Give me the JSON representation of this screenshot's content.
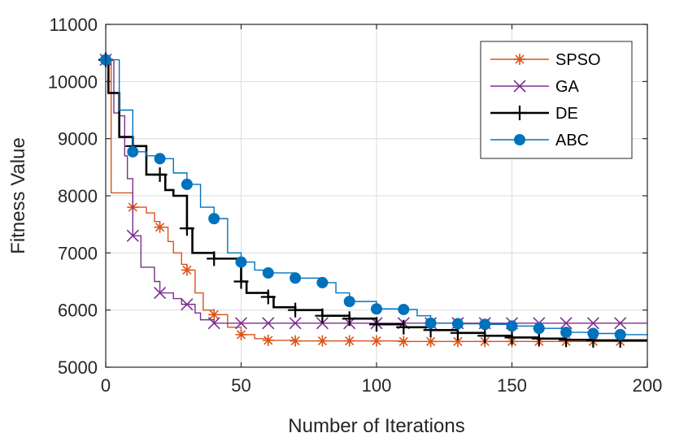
{
  "chart_data": {
    "type": "line",
    "title": "",
    "xlabel": "Number of Iterations",
    "ylabel": "Fitness Value",
    "xlim": [
      0,
      200
    ],
    "ylim": [
      5000,
      11000
    ],
    "xticks": [
      0,
      50,
      100,
      150,
      200
    ],
    "yticks": [
      5000,
      6000,
      7000,
      8000,
      9000,
      10000,
      11000
    ],
    "grid": true,
    "legend_position": "top-right",
    "series": [
      {
        "name": "SPSO",
        "color": "#D95319",
        "marker": "asterisk",
        "x": [
          0,
          1,
          2,
          9,
          10,
          15,
          18,
          20,
          23,
          25,
          28,
          30,
          33,
          36,
          40,
          45,
          50,
          55,
          60,
          70,
          80,
          90,
          100,
          110,
          120,
          130,
          140,
          150,
          160,
          170,
          180,
          190,
          200
        ],
        "y": [
          10380,
          10380,
          8050,
          8050,
          7800,
          7700,
          7550,
          7450,
          7200,
          7000,
          6800,
          6700,
          6300,
          6000,
          5920,
          5700,
          5570,
          5500,
          5470,
          5460,
          5460,
          5460,
          5460,
          5450,
          5450,
          5450,
          5450,
          5450,
          5450,
          5450,
          5450,
          5450,
          5450
        ]
      },
      {
        "name": "GA",
        "color": "#7E2F8E",
        "marker": "x",
        "x": [
          0,
          3,
          5,
          7,
          8,
          10,
          12,
          13,
          15,
          18,
          20,
          25,
          28,
          30,
          33,
          35,
          40,
          45,
          50,
          60,
          70,
          80,
          90,
          100,
          110,
          120,
          130,
          140,
          150,
          160,
          170,
          180,
          190,
          200
        ],
        "y": [
          10380,
          9450,
          9400,
          8700,
          8300,
          7300,
          7300,
          6750,
          6750,
          6500,
          6300,
          6200,
          6100,
          6100,
          5950,
          5830,
          5770,
          5770,
          5770,
          5770,
          5770,
          5770,
          5770,
          5770,
          5770,
          5770,
          5770,
          5770,
          5770,
          5770,
          5770,
          5770,
          5770,
          5770
        ]
      },
      {
        "name": "DE",
        "color": "#000000",
        "marker": "plus",
        "x": [
          0,
          1,
          2,
          5,
          9,
          10,
          15,
          20,
          22,
          25,
          30,
          32,
          35,
          40,
          45,
          50,
          52,
          60,
          62,
          65,
          70,
          75,
          80,
          90,
          100,
          110,
          120,
          130,
          140,
          150,
          160,
          170,
          180,
          190,
          200
        ],
        "y": [
          10380,
          9800,
          9800,
          9030,
          9030,
          8870,
          8370,
          8370,
          8100,
          8000,
          7430,
          7000,
          7000,
          6900,
          6900,
          6500,
          6300,
          6230,
          6050,
          6050,
          6000,
          6000,
          5900,
          5850,
          5750,
          5700,
          5650,
          5600,
          5550,
          5520,
          5500,
          5480,
          5470,
          5470,
          5470
        ]
      },
      {
        "name": "ABC",
        "color": "#0072BD",
        "marker": "circle",
        "x": [
          0,
          5,
          10,
          15,
          20,
          25,
          30,
          35,
          40,
          45,
          50,
          55,
          60,
          70,
          80,
          85,
          90,
          100,
          110,
          115,
          120,
          130,
          140,
          150,
          160,
          170,
          180,
          190,
          200
        ],
        "y": [
          10380,
          9500,
          8770,
          8700,
          8650,
          8400,
          8200,
          7800,
          7600,
          7000,
          6840,
          6700,
          6650,
          6560,
          6480,
          6300,
          6150,
          6020,
          6010,
          5900,
          5770,
          5760,
          5750,
          5720,
          5680,
          5610,
          5590,
          5570,
          5560
        ]
      }
    ]
  }
}
